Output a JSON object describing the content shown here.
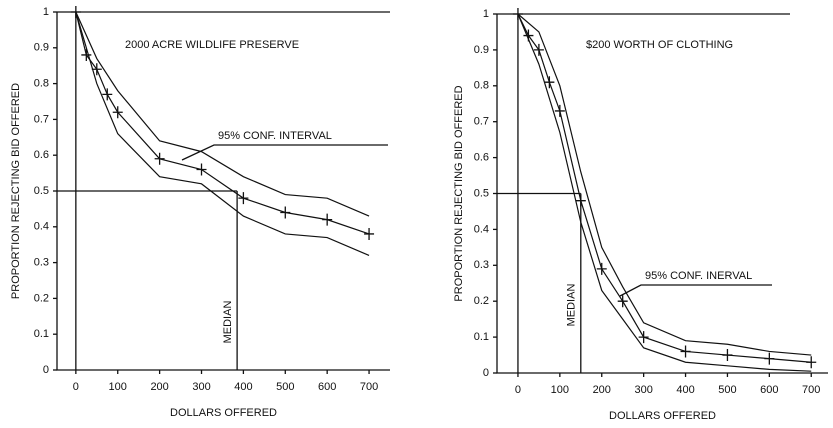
{
  "chart_data": [
    {
      "type": "line",
      "title": "2000 ACRE WILDLIFE PRESERVE",
      "xlabel": "DOLLARS OFFERED",
      "ylabel": "PROPORTION REJECTING BID OFFERED",
      "annotation": "95% CONF. INTERVAL",
      "median_label": "MEDIAN",
      "median": 385,
      "median_proportion": 0.5,
      "xlim": [
        -45,
        750
      ],
      "ylim": [
        0,
        1
      ],
      "xticks": [
        0,
        100,
        200,
        300,
        400,
        500,
        600,
        700
      ],
      "yticks": [
        0,
        0.1,
        0.2,
        0.3,
        0.4,
        0.5,
        0.6,
        0.7,
        0.8,
        0.9,
        1
      ],
      "series": [
        {
          "color": "#111",
          "markers": true,
          "x": [
            0,
            25,
            50,
            75,
            100,
            200,
            300,
            400,
            500,
            600,
            700
          ],
          "values": [
            1.0,
            0.88,
            0.84,
            0.77,
            0.72,
            0.59,
            0.56,
            0.48,
            0.44,
            0.42,
            0.38
          ]
        },
        {
          "color": "#111",
          "markers": false,
          "x": [
            0,
            50,
            100,
            200,
            300,
            400,
            500,
            600,
            700
          ],
          "values": [
            1.0,
            0.87,
            0.78,
            0.64,
            0.61,
            0.54,
            0.49,
            0.48,
            0.43
          ]
        },
        {
          "color": "#111",
          "markers": false,
          "x": [
            0,
            50,
            100,
            200,
            300,
            400,
            500,
            600,
            700
          ],
          "values": [
            1.0,
            0.8,
            0.66,
            0.54,
            0.52,
            0.43,
            0.38,
            0.37,
            0.32
          ]
        }
      ]
    },
    {
      "type": "line",
      "title": "$200 WORTH OF CLOTHING",
      "xlabel": "DOLLARS OFFERED",
      "ylabel": "PROPORTION REJECTING BID OFFERED",
      "annotation": "95% CONF. INERVAL",
      "median_label": "MEDIAN",
      "median": 150,
      "median_proportion": 0.5,
      "xlim": [
        -50,
        740
      ],
      "ylim": [
        0,
        1
      ],
      "xticks": [
        0,
        100,
        200,
        300,
        400,
        500,
        600,
        700
      ],
      "yticks": [
        0,
        0.1,
        0.2,
        0.3,
        0.4,
        0.5,
        0.6,
        0.7,
        0.8,
        0.9,
        1
      ],
      "series": [
        {
          "color": "#111",
          "markers": true,
          "x": [
            0,
            25,
            50,
            75,
            100,
            150,
            200,
            250,
            300,
            400,
            500,
            600,
            700
          ],
          "values": [
            1.0,
            0.94,
            0.9,
            0.81,
            0.73,
            0.48,
            0.29,
            0.2,
            0.1,
            0.06,
            0.05,
            0.04,
            0.03
          ]
        },
        {
          "color": "#111",
          "markers": false,
          "x": [
            0,
            50,
            100,
            150,
            200,
            250,
            300,
            400,
            500,
            600,
            700
          ],
          "values": [
            1.0,
            0.95,
            0.8,
            0.56,
            0.35,
            0.24,
            0.14,
            0.09,
            0.08,
            0.06,
            0.05
          ]
        },
        {
          "color": "#111",
          "markers": false,
          "x": [
            0,
            50,
            100,
            150,
            200,
            250,
            300,
            400,
            500,
            600,
            700
          ],
          "values": [
            1.0,
            0.86,
            0.67,
            0.42,
            0.23,
            0.15,
            0.07,
            0.03,
            0.02,
            0.01,
            0.005
          ]
        }
      ]
    }
  ]
}
